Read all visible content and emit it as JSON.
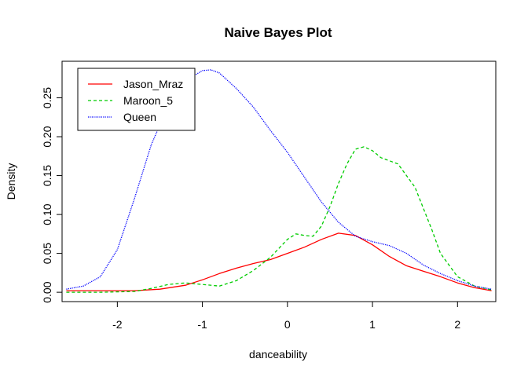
{
  "chart_data": {
    "type": "line",
    "title": "Naive Bayes Plot",
    "xlabel": "danceability",
    "ylabel": "Density",
    "xlim": [
      -2.65,
      2.45
    ],
    "ylim": [
      -0.012,
      0.297
    ],
    "xticks": [
      -2,
      -1,
      0,
      1,
      2
    ],
    "yticks": [
      0.0,
      0.05,
      0.1,
      0.15,
      0.2,
      0.25
    ],
    "ytick_labels": [
      "0.00",
      "0.05",
      "0.10",
      "0.15",
      "0.20",
      "0.25"
    ],
    "grid": false,
    "legend_position": "top-left",
    "series": [
      {
        "name": "Jason_Mraz",
        "color": "#ff0000",
        "dash": "solid",
        "x": [
          -2.6,
          -2.2,
          -1.8,
          -1.5,
          -1.2,
          -1.0,
          -0.8,
          -0.6,
          -0.4,
          -0.2,
          0.0,
          0.2,
          0.4,
          0.6,
          0.8,
          1.0,
          1.2,
          1.4,
          1.6,
          1.8,
          2.0,
          2.2,
          2.4
        ],
        "y": [
          0.002,
          0.002,
          0.002,
          0.004,
          0.009,
          0.016,
          0.024,
          0.031,
          0.037,
          0.042,
          0.05,
          0.058,
          0.068,
          0.076,
          0.073,
          0.061,
          0.046,
          0.034,
          0.027,
          0.02,
          0.012,
          0.006,
          0.002
        ]
      },
      {
        "name": "Maroon_5",
        "color": "#00cc00",
        "dash": "dashed",
        "x": [
          -2.6,
          -2.2,
          -1.8,
          -1.6,
          -1.4,
          -1.2,
          -1.0,
          -0.8,
          -0.6,
          -0.4,
          -0.2,
          0.0,
          0.1,
          0.2,
          0.3,
          0.4,
          0.5,
          0.6,
          0.7,
          0.8,
          0.9,
          1.0,
          1.1,
          1.3,
          1.5,
          1.7,
          1.8,
          2.0,
          2.2,
          2.4
        ],
        "y": [
          0.0,
          0.0,
          0.001,
          0.005,
          0.01,
          0.012,
          0.01,
          0.008,
          0.015,
          0.028,
          0.045,
          0.068,
          0.075,
          0.073,
          0.072,
          0.085,
          0.11,
          0.14,
          0.165,
          0.184,
          0.187,
          0.182,
          0.173,
          0.165,
          0.135,
          0.08,
          0.05,
          0.02,
          0.008,
          0.003
        ]
      },
      {
        "name": "Queen",
        "color": "#0000ff",
        "dash": "dotted",
        "x": [
          -2.6,
          -2.4,
          -2.2,
          -2.0,
          -1.8,
          -1.6,
          -1.4,
          -1.2,
          -1.0,
          -0.9,
          -0.8,
          -0.6,
          -0.4,
          -0.2,
          0.0,
          0.2,
          0.4,
          0.6,
          0.8,
          1.0,
          1.2,
          1.4,
          1.6,
          1.8,
          2.0,
          2.2,
          2.4
        ],
        "y": [
          0.004,
          0.008,
          0.02,
          0.055,
          0.12,
          0.19,
          0.24,
          0.272,
          0.285,
          0.286,
          0.282,
          0.262,
          0.238,
          0.208,
          0.18,
          0.148,
          0.116,
          0.09,
          0.072,
          0.065,
          0.06,
          0.05,
          0.035,
          0.024,
          0.015,
          0.008,
          0.004
        ]
      }
    ]
  }
}
